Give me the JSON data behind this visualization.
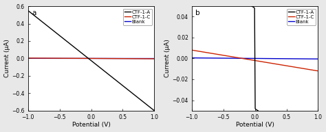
{
  "panel_a": {
    "label": "a",
    "xlim": [
      -1.0,
      1.0
    ],
    "ylim": [
      -0.6,
      0.6
    ],
    "xlabel": "Potential (V)",
    "ylabel": "Current (µA)",
    "yticks": [
      -0.6,
      -0.4,
      -0.2,
      0.0,
      0.2,
      0.4,
      0.6
    ],
    "xticks": [
      -1.0,
      -0.5,
      0.0,
      0.5,
      1.0
    ],
    "lines": [
      {
        "label": "CTF-1-A",
        "color": "#000000",
        "x": [
          -1.0,
          1.0
        ],
        "y": [
          0.55,
          -0.6
        ],
        "lw": 1.0,
        "zorder": 3
      },
      {
        "label": "CTF-1-C",
        "color": "#cc2200",
        "x": [
          -1.0,
          1.0
        ],
        "y": [
          0.004,
          -0.004
        ],
        "lw": 1.0,
        "zorder": 2
      },
      {
        "label": "Blank",
        "color": "#0000cc",
        "x": [
          -1.0,
          1.0
        ],
        "y": [
          0.001,
          -0.001
        ],
        "lw": 1.0,
        "zorder": 1
      }
    ]
  },
  "panel_b": {
    "label": "b",
    "xlim": [
      -1.0,
      1.0
    ],
    "ylim": [
      -0.05,
      0.05
    ],
    "xlabel": "Potential (V)",
    "ylabel": "Current (µA)",
    "yticks": [
      -0.04,
      -0.02,
      0.0,
      0.02,
      0.04
    ],
    "xticks": [
      -1.0,
      -0.5,
      0.0,
      0.5,
      1.0
    ],
    "lines": [
      {
        "label": "CTF-1-A",
        "color": "#000000",
        "x": [
          -0.05,
          -0.02,
          -0.005,
          0.0,
          0.005,
          0.02,
          0.05
        ],
        "y": [
          0.05,
          0.049,
          0.048,
          0.0,
          -0.048,
          -0.049,
          -0.05
        ],
        "lw": 1.0,
        "zorder": 3
      },
      {
        "label": "CTF-1-C",
        "color": "#cc2200",
        "x": [
          -1.0,
          1.0
        ],
        "y": [
          0.008,
          -0.012
        ],
        "lw": 1.0,
        "zorder": 2
      },
      {
        "label": "Blank",
        "color": "#0000cc",
        "x": [
          -1.0,
          1.0
        ],
        "y": [
          0.0005,
          -0.0005
        ],
        "lw": 1.0,
        "zorder": 1
      }
    ]
  },
  "legend_fontsize": 5.0,
  "tick_fontsize": 5.5,
  "label_fontsize": 6.5,
  "panel_label_fontsize": 7.5,
  "background_color": "#ffffff",
  "fig_facecolor": "#e8e8e8"
}
